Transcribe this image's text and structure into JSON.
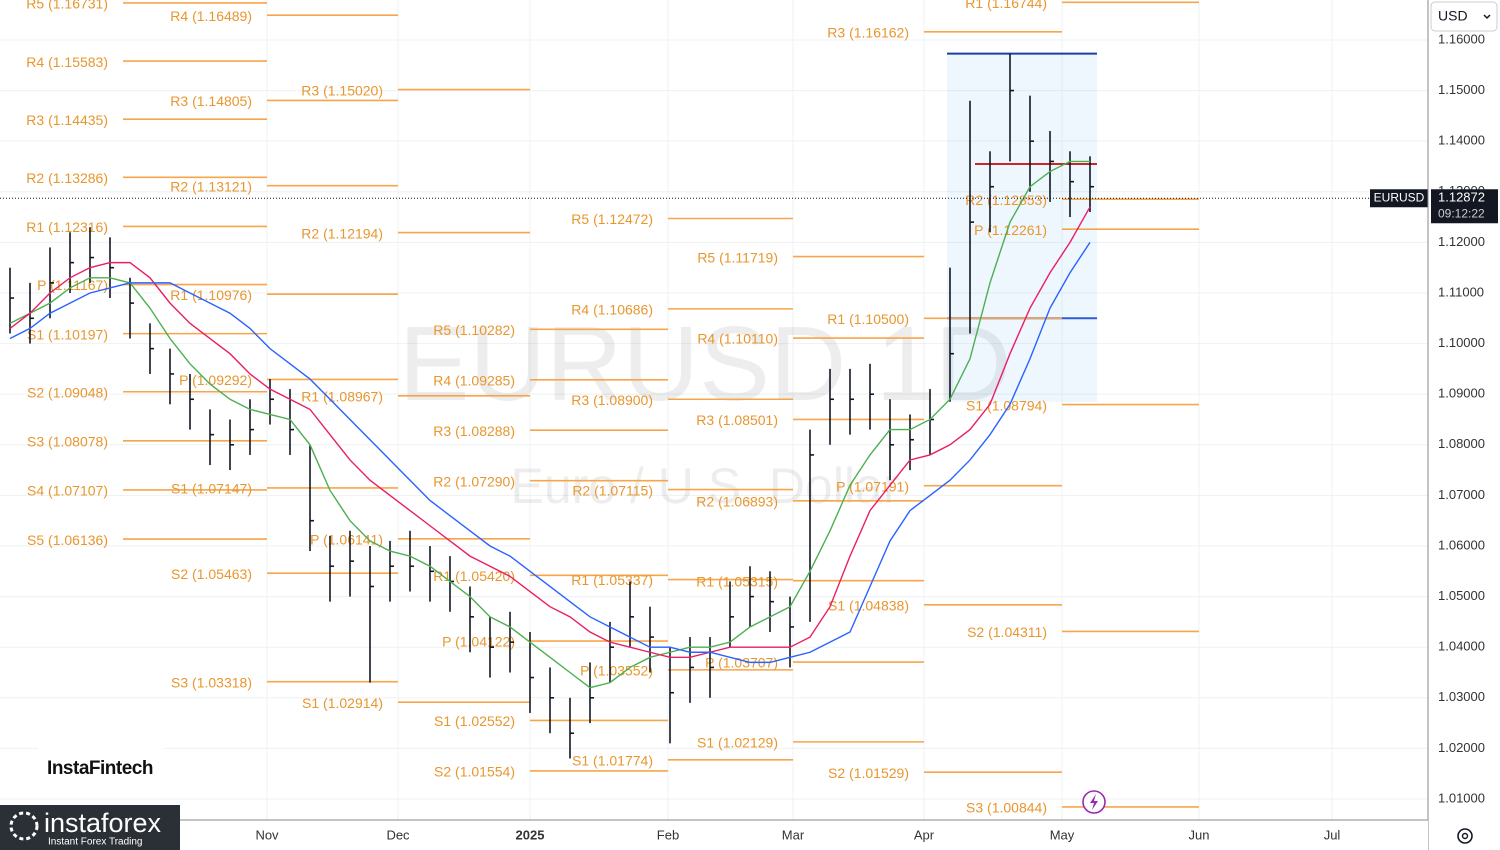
{
  "chart_data": {
    "type": "ohlc",
    "title": "EURUSD 1D",
    "subtitle": "Euro / U.S. Dollar",
    "symbol": "EURUSD",
    "currency": "USD",
    "last_price": 1.12872,
    "countdown": "09:12:22",
    "ylim": [
      1.00585,
      1.1679
    ],
    "yticks": [
      {
        "value": 1.16,
        "label": "1.16000"
      },
      {
        "value": 1.15,
        "label": "1.15000"
      },
      {
        "value": 1.14,
        "label": "1.14000"
      },
      {
        "value": 1.13,
        "label": "1.13000"
      },
      {
        "value": 1.12,
        "label": "1.12000"
      },
      {
        "value": 1.11,
        "label": "1.11000"
      },
      {
        "value": 1.1,
        "label": "1.10000"
      },
      {
        "value": 1.09,
        "label": "1.09000"
      },
      {
        "value": 1.08,
        "label": "1.08000"
      },
      {
        "value": 1.07,
        "label": "1.07000"
      },
      {
        "value": 1.06,
        "label": "1.06000"
      },
      {
        "value": 1.05,
        "label": "1.05000"
      },
      {
        "value": 1.04,
        "label": "1.04000"
      },
      {
        "value": 1.03,
        "label": "1.03000"
      },
      {
        "value": 1.02,
        "label": "1.02000"
      },
      {
        "value": 1.01,
        "label": "1.01000"
      }
    ],
    "xticks": [
      "Nov",
      "Dec",
      "2025",
      "Feb",
      "Mar",
      "Apr",
      "May",
      "Jun",
      "Jul"
    ],
    "grid": true,
    "bar_color": "#131722",
    "high": [
      1.115,
      1.112,
      1.119,
      1.122,
      1.123,
      1.121,
      1.113,
      1.104,
      1.099,
      1.094,
      1.087,
      1.085,
      1.089,
      1.093,
      1.091,
      1.08,
      1.062,
      1.063,
      1.06,
      1.061,
      1.063,
      1.06,
      1.058,
      1.052,
      1.046,
      1.047,
      1.043,
      1.036,
      1.03,
      1.037,
      1.045,
      1.053,
      1.048,
      1.04,
      1.042,
      1.042,
      1.053,
      1.056,
      1.055,
      1.05,
      1.083,
      1.095,
      1.095,
      1.096,
      1.089,
      1.086,
      1.091,
      1.115,
      1.148,
      1.138,
      1.1573,
      1.149,
      1.142,
      1.138,
      1.137
    ],
    "low": [
      1.102,
      1.1,
      1.105,
      1.11,
      1.112,
      1.109,
      1.101,
      1.094,
      1.088,
      1.083,
      1.076,
      1.075,
      1.078,
      1.084,
      1.078,
      1.059,
      1.049,
      1.05,
      1.033,
      1.049,
      1.051,
      1.049,
      1.047,
      1.039,
      1.034,
      1.035,
      1.027,
      1.023,
      1.018,
      1.025,
      1.033,
      1.04,
      1.035,
      1.021,
      1.029,
      1.03,
      1.04,
      1.044,
      1.043,
      1.036,
      1.045,
      1.08,
      1.082,
      1.083,
      1.073,
      1.075,
      1.078,
      1.0885,
      1.102,
      1.122,
      1.136,
      1.13,
      1.128,
      1.125,
      1.126
    ],
    "close": [
      1.109,
      1.105,
      1.112,
      1.116,
      1.117,
      1.115,
      1.108,
      1.099,
      1.094,
      1.089,
      1.082,
      1.08,
      1.083,
      1.089,
      1.083,
      1.065,
      1.056,
      1.057,
      1.052,
      1.056,
      1.056,
      1.055,
      1.053,
      1.046,
      1.04,
      1.041,
      1.034,
      1.03,
      1.023,
      1.03,
      1.04,
      1.046,
      1.042,
      1.031,
      1.036,
      1.036,
      1.046,
      1.05,
      1.049,
      1.044,
      1.078,
      1.089,
      1.089,
      1.09,
      1.08,
      1.081,
      1.085,
      1.098,
      1.124,
      1.131,
      1.15,
      1.14,
      1.136,
      1.132,
      1.131
    ],
    "series": [
      {
        "color": "#4caf50",
        "values": [
          1.104,
          1.106,
          1.108,
          1.111,
          1.113,
          1.113,
          1.112,
          1.107,
          1.101,
          1.096,
          1.092,
          1.089,
          1.087,
          1.086,
          1.085,
          1.08,
          1.071,
          1.065,
          1.061,
          1.059,
          1.058,
          1.056,
          1.053,
          1.05,
          1.046,
          1.044,
          1.041,
          1.038,
          1.035,
          1.032,
          1.033,
          1.036,
          1.038,
          1.039,
          1.04,
          1.04,
          1.041,
          1.044,
          1.046,
          1.048,
          1.055,
          1.063,
          1.072,
          1.078,
          1.083,
          1.083,
          1.085,
          1.089,
          1.097,
          1.112,
          1.124,
          1.131,
          1.134,
          1.136,
          1.136
        ]
      },
      {
        "color": "#e91e63",
        "values": [
          1.103,
          1.106,
          1.11,
          1.113,
          1.115,
          1.116,
          1.116,
          1.113,
          1.108,
          1.104,
          1.101,
          1.098,
          1.094,
          1.091,
          1.089,
          1.087,
          1.082,
          1.077,
          1.073,
          1.07,
          1.067,
          1.064,
          1.061,
          1.058,
          1.056,
          1.054,
          1.051,
          1.048,
          1.046,
          1.043,
          1.041,
          1.04,
          1.039,
          1.038,
          1.038,
          1.039,
          1.04,
          1.04,
          1.04,
          1.04,
          1.042,
          1.048,
          1.058,
          1.067,
          1.072,
          1.077,
          1.078,
          1.08,
          1.083,
          1.088,
          1.098,
          1.107,
          1.114,
          1.12,
          1.127
        ]
      },
      {
        "color": "#2962ff",
        "values": [
          1.101,
          1.103,
          1.106,
          1.108,
          1.11,
          1.111,
          1.112,
          1.112,
          1.112,
          1.11,
          1.108,
          1.106,
          1.103,
          1.099,
          1.096,
          1.093,
          1.089,
          1.085,
          1.081,
          1.077,
          1.073,
          1.069,
          1.066,
          1.063,
          1.06,
          1.058,
          1.055,
          1.052,
          1.049,
          1.046,
          1.044,
          1.042,
          1.04,
          1.04,
          1.039,
          1.039,
          1.038,
          1.037,
          1.037,
          1.038,
          1.039,
          1.041,
          1.043,
          1.052,
          1.061,
          1.067,
          1.07,
          1.073,
          1.077,
          1.082,
          1.088,
          1.097,
          1.107,
          1.114,
          1.12
        ]
      }
    ],
    "range_box": {
      "high": 1.1573,
      "low": 1.0885,
      "poc": 1.1355,
      "mid": 1.105
    },
    "pivot_color": "#f7a54a",
    "pivot_periods": [
      {
        "levels": [
          {
            "label": "R5 (1.16731)",
            "value": 1.16731
          },
          {
            "label": "R4 (1.15583)",
            "value": 1.15583
          },
          {
            "label": "R3 (1.14435)",
            "value": 1.14435
          },
          {
            "label": "R2 (1.13286)",
            "value": 1.13286
          },
          {
            "label": "R1 (1.12316)",
            "value": 1.12316
          },
          {
            "label": "P (1.11167)",
            "value": 1.11167
          },
          {
            "label": "S1 (1.10197)",
            "value": 1.10197
          },
          {
            "label": "S2 (1.09048)",
            "value": 1.09048
          },
          {
            "label": "S3 (1.08078)",
            "value": 1.08078
          },
          {
            "label": "S4 (1.07107)",
            "value": 1.07107
          },
          {
            "label": "S5 (1.06136)",
            "value": 1.06136
          }
        ]
      },
      {
        "levels": [
          {
            "label": "R4 (1.16489)",
            "value": 1.16489
          },
          {
            "label": "R3 (1.14805)",
            "value": 1.14805
          },
          {
            "label": "R2 (1.13121)",
            "value": 1.13121
          },
          {
            "label": "R1 (1.10976)",
            "value": 1.10976
          },
          {
            "label": "P (1.09292)",
            "value": 1.09292
          },
          {
            "label": "S1 (1.07147)",
            "value": 1.07147
          },
          {
            "label": "S2 (1.05463)",
            "value": 1.05463
          },
          {
            "label": "S3 (1.03318)",
            "value": 1.03318
          }
        ]
      },
      {
        "levels": [
          {
            "label": "R3 (1.15020)",
            "value": 1.1502
          },
          {
            "label": "R2 (1.12194)",
            "value": 1.12194
          },
          {
            "label": "R1 (1.08967)",
            "value": 1.08967
          },
          {
            "label": "P (1.06141)",
            "value": 1.06141
          },
          {
            "label": "S1 (1.02914)",
            "value": 1.02914
          }
        ]
      },
      {
        "levels": [
          {
            "label": "R5 (1.10282)",
            "value": 1.10282
          },
          {
            "label": "R4 (1.09285)",
            "value": 1.09285
          },
          {
            "label": "R3 (1.08288)",
            "value": 1.08288
          },
          {
            "label": "R2 (1.07290)",
            "value": 1.0729
          },
          {
            "label": "R1 (1.05420)",
            "value": 1.0542
          },
          {
            "label": "P (1.04122)",
            "value": 1.04122
          },
          {
            "label": "S1 (1.02552)",
            "value": 1.02552
          },
          {
            "label": "S2 (1.01554)",
            "value": 1.01554
          }
        ]
      },
      {
        "levels": [
          {
            "label": "R5 (1.12472)",
            "value": 1.12472
          },
          {
            "label": "R4 (1.10686)",
            "value": 1.10686
          },
          {
            "label": "R3 (1.08900)",
            "value": 1.089
          },
          {
            "label": "R2 (1.07115)",
            "value": 1.07115
          },
          {
            "label": "R1 (1.05337)",
            "value": 1.05337
          },
          {
            "label": "P (1.03552)",
            "value": 1.03552
          },
          {
            "label": "S1 (1.01774)",
            "value": 1.01774
          }
        ]
      },
      {
        "levels": [
          {
            "label": "R5 (1.11719)",
            "value": 1.11719
          },
          {
            "label": "R4 (1.10110)",
            "value": 1.1011
          },
          {
            "label": "R3 (1.08501)",
            "value": 1.08501
          },
          {
            "label": "R2 (1.06893)",
            "value": 1.06893
          },
          {
            "label": "R1 (1.05315)",
            "value": 1.05315
          },
          {
            "label": "P (1.03707)",
            "value": 1.03707
          },
          {
            "label": "S1 (1.02129)",
            "value": 1.02129
          }
        ]
      },
      {
        "levels": [
          {
            "label": "R3 (1.16162)",
            "value": 1.16162
          },
          {
            "label": "R1 (1.10500)",
            "value": 1.105
          },
          {
            "label": "P (1.07191)",
            "value": 1.07191
          },
          {
            "label": "S1 (1.04838)",
            "value": 1.04838
          },
          {
            "label": "S2 (1.01529)",
            "value": 1.01529
          }
        ]
      },
      {
        "levels": [
          {
            "label": "R1 (1.16744)",
            "value": 1.16744
          },
          {
            "label": "R2 (1.12853)",
            "value": 1.12853
          },
          {
            "label": "P (1.12261)",
            "value": 1.12261
          },
          {
            "label": "S1 (1.08794)",
            "value": 1.08794
          },
          {
            "label": "S2 (1.04311)",
            "value": 1.04311
          },
          {
            "label": "S3 (1.00844)",
            "value": 1.00844
          }
        ]
      }
    ]
  },
  "logos": {
    "instafintech": "InstaFintech",
    "instaforex": "instaforex",
    "tagline": "Instant Forex Trading"
  }
}
